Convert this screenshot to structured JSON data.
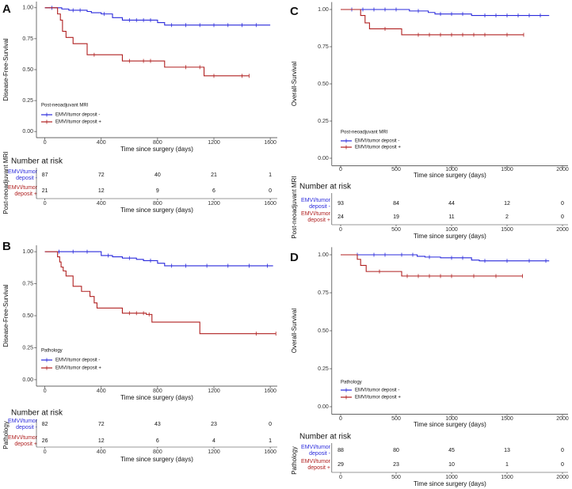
{
  "chart_data": [
    {
      "type": "step",
      "label": "A",
      "ylabel": "Disease-Free-Survival",
      "xlabel": "Time since surgery (days)",
      "xlim": [
        -60,
        1650
      ],
      "ylim": [
        -0.05,
        1.05
      ],
      "xticks": [
        0,
        400,
        800,
        1200,
        1600
      ],
      "yticks": [
        {
          "value": 0,
          "label": "0.00"
        },
        {
          "value": 0.25,
          "label": "0.25"
        },
        {
          "value": 0.5,
          "label": "0.50"
        },
        {
          "value": 0.75,
          "label": "0.75"
        },
        {
          "value": 1,
          "label": "1.00"
        }
      ],
      "legend_title": "Post-neoadjuvant MRI",
      "series": [
        {
          "name": "EMVI/tumor deposit -",
          "color": "#2b2bdc",
          "x": [
            0,
            120,
            170,
            300,
            330,
            400,
            480,
            550,
            800,
            850,
            1600
          ],
          "values": [
            1,
            0.99,
            0.98,
            0.97,
            0.96,
            0.95,
            0.92,
            0.9,
            0.88,
            0.86,
            0.86
          ],
          "censor_x": [
            50,
            200,
            250,
            420,
            600,
            650,
            700,
            750,
            900,
            1000,
            1100,
            1200,
            1300,
            1400,
            1500
          ]
        },
        {
          "name": "EMVI/tumor deposit +",
          "color": "#b02020",
          "x": [
            0,
            90,
            110,
            125,
            150,
            200,
            300,
            550,
            850,
            1130,
            1450
          ],
          "values": [
            1,
            0.95,
            0.9,
            0.81,
            0.76,
            0.71,
            0.62,
            0.57,
            0.52,
            0.45,
            0.45
          ],
          "censor_x": [
            350,
            600,
            700,
            750,
            1000,
            1100,
            1200,
            1400,
            1450
          ]
        }
      ],
      "risk_title": "Number at risk",
      "risk_ylabel": "Post-neoadjuvant MRI",
      "risk_labels": [
        [
          "EMVI/tumor",
          "deposit -"
        ],
        [
          "EMVI/tumor",
          "deposit +"
        ]
      ],
      "risk_counts": [
        [
          87,
          72,
          40,
          21,
          1
        ],
        [
          21,
          12,
          9,
          6,
          0
        ]
      ]
    },
    {
      "type": "step",
      "label": "B",
      "ylabel": "Disease-Free-Survival",
      "xlabel": "Time since surgery (days)",
      "xlim": [
        -60,
        1650
      ],
      "ylim": [
        -0.05,
        1.05
      ],
      "xticks": [
        0,
        400,
        800,
        1200,
        1600
      ],
      "yticks": [
        {
          "value": 0,
          "label": "0.00"
        },
        {
          "value": 0.25,
          "label": "0.25"
        },
        {
          "value": 0.5,
          "label": "0.50"
        },
        {
          "value": 0.75,
          "label": "0.75"
        },
        {
          "value": 1,
          "label": "1.00"
        }
      ],
      "legend_title": "Pathology",
      "series": [
        {
          "name": "EMVI/tumor deposit -",
          "color": "#2b2bdc",
          "x": [
            0,
            400,
            480,
            550,
            650,
            700,
            800,
            850,
            1620
          ],
          "values": [
            1,
            0.97,
            0.96,
            0.95,
            0.94,
            0.93,
            0.91,
            0.89,
            0.89
          ],
          "censor_x": [
            100,
            200,
            300,
            450,
            600,
            750,
            900,
            1000,
            1150,
            1300,
            1450,
            1580
          ]
        },
        {
          "name": "EMVI/tumor deposit +",
          "color": "#b02020",
          "x": [
            0,
            90,
            105,
            115,
            130,
            150,
            200,
            260,
            320,
            350,
            370,
            550,
            720,
            760,
            1100,
            1640
          ],
          "values": [
            1,
            0.96,
            0.92,
            0.88,
            0.85,
            0.81,
            0.73,
            0.69,
            0.65,
            0.6,
            0.56,
            0.52,
            0.51,
            0.45,
            0.36,
            0.36
          ],
          "censor_x": [
            600,
            650,
            700,
            740,
            1500,
            1640
          ]
        }
      ],
      "risk_title": "Number at risk",
      "risk_ylabel": "Pathology",
      "risk_labels": [
        [
          "EMVI/tumor",
          "deposit -"
        ],
        [
          "EMVI/tumor",
          "deposit +"
        ]
      ],
      "risk_counts": [
        [
          82,
          72,
          43,
          23,
          0
        ],
        [
          26,
          12,
          6,
          4,
          1
        ]
      ]
    },
    {
      "type": "step",
      "label": "C",
      "ylabel": "Overall-Survival",
      "xlabel": "Time since surgery (days)",
      "xlim": [
        -80,
        2050
      ],
      "ylim": [
        -0.05,
        1.05
      ],
      "xticks": [
        0,
        500,
        1000,
        1500,
        2000
      ],
      "yticks": [
        {
          "value": 0,
          "label": "0.00"
        },
        {
          "value": 0.25,
          "label": "0.25"
        },
        {
          "value": 0.5,
          "label": "0.50"
        },
        {
          "value": 0.75,
          "label": "0.75"
        },
        {
          "value": 1,
          "label": "1.00"
        }
      ],
      "legend_title": "Post-neoadjuvant MRI",
      "series": [
        {
          "name": "EMVI/tumor deposit -",
          "color": "#2b2bdc",
          "x": [
            0,
            620,
            790,
            850,
            1180,
            1880
          ],
          "values": [
            1,
            0.99,
            0.98,
            0.97,
            0.96,
            0.96
          ],
          "censor_x": [
            100,
            200,
            300,
            400,
            500,
            700,
            900,
            1000,
            1100,
            1300,
            1400,
            1500,
            1600,
            1700,
            1800
          ]
        },
        {
          "name": "EMVI/tumor deposit +",
          "color": "#b02020",
          "x": [
            0,
            180,
            220,
            260,
            550,
            1650
          ],
          "values": [
            1,
            0.96,
            0.91,
            0.87,
            0.83,
            0.83
          ],
          "censor_x": [
            400,
            700,
            800,
            900,
            1000,
            1100,
            1200,
            1300,
            1500,
            1650
          ]
        }
      ],
      "risk_title": "Number at risk",
      "risk_ylabel": "Post-neoadjuvant MRI",
      "risk_labels": [
        [
          "EMVI/tumor",
          "deposit -"
        ],
        [
          "EMVI/tumor",
          "deposit +"
        ]
      ],
      "risk_counts": [
        [
          93,
          84,
          44,
          12,
          0
        ],
        [
          24,
          19,
          11,
          2,
          0
        ]
      ]
    },
    {
      "type": "step",
      "label": "D",
      "ylabel": "Overall-Survival",
      "xlabel": "Time since surgery (days)",
      "xlim": [
        -80,
        2050
      ],
      "ylim": [
        -0.05,
        1.05
      ],
      "xticks": [
        0,
        500,
        1000,
        1500,
        2000
      ],
      "yticks": [
        {
          "value": 0,
          "label": "0.00"
        },
        {
          "value": 0.25,
          "label": "0.25"
        },
        {
          "value": 0.5,
          "label": "0.50"
        },
        {
          "value": 0.75,
          "label": "0.75"
        },
        {
          "value": 1,
          "label": "1.00"
        }
      ],
      "legend_title": "Pathology",
      "series": [
        {
          "name": "EMVI/tumor deposit -",
          "color": "#2b2bdc",
          "x": [
            0,
            690,
            760,
            900,
            1180,
            1250,
            1880
          ],
          "values": [
            1,
            0.99,
            0.985,
            0.98,
            0.965,
            0.96,
            0.96
          ],
          "censor_x": [
            150,
            300,
            400,
            550,
            650,
            800,
            1000,
            1100,
            1300,
            1500,
            1700,
            1850
          ]
        },
        {
          "name": "EMVI/tumor deposit +",
          "color": "#b02020",
          "x": [
            0,
            150,
            180,
            230,
            550,
            1640
          ],
          "values": [
            1,
            0.97,
            0.93,
            0.89,
            0.86,
            0.86
          ],
          "censor_x": [
            350,
            600,
            700,
            800,
            900,
            1000,
            1200,
            1400,
            1640
          ]
        }
      ],
      "risk_title": "Number at risk",
      "risk_ylabel": "Pathology",
      "risk_labels": [
        [
          "EMVI/tumor",
          "deposit -"
        ],
        [
          "EMVI/tumor",
          "deposit +"
        ]
      ],
      "risk_counts": [
        [
          88,
          80,
          45,
          13,
          0
        ],
        [
          29,
          23,
          10,
          1,
          0
        ]
      ]
    }
  ]
}
